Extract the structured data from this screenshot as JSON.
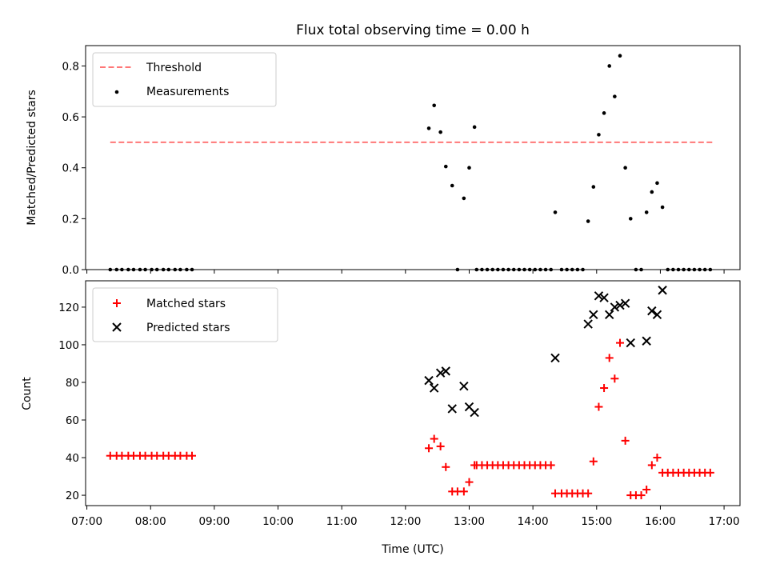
{
  "chart_data": {
    "title": "Flux total observing time = 0.00 h",
    "xlabel": "Time (UTC)",
    "x_ticks": [
      "07:00",
      "08:00",
      "09:00",
      "10:00",
      "11:00",
      "12:00",
      "13:00",
      "14:00",
      "15:00",
      "16:00",
      "17:00"
    ],
    "xlim_hours": [
      6.98,
      17.25
    ],
    "panels": [
      {
        "type": "scatter",
        "ylabel": "Matched/Predicted stars",
        "ylim": [
          0,
          0.88
        ],
        "y_ticks": [
          0.0,
          0.2,
          0.4,
          0.6,
          0.8
        ],
        "y_tick_labels": [
          "0.0",
          "0.2",
          "0.4",
          "0.6",
          "0.8"
        ],
        "legend_placement": "upper-left",
        "threshold": {
          "name": "Threshold",
          "y": 0.5,
          "x_start": "07:22",
          "x_end": "16:49",
          "color": "#ff7777",
          "style": "dashed"
        },
        "measurements": {
          "name": "Measurements",
          "color": "#000000",
          "points": [
            [
              "07:22",
              0
            ],
            [
              "07:28",
              0
            ],
            [
              "07:33",
              0
            ],
            [
              "07:39",
              0
            ],
            [
              "07:44",
              0
            ],
            [
              "07:50",
              0
            ],
            [
              "07:55",
              0
            ],
            [
              "08:01",
              0
            ],
            [
              "08:06",
              0
            ],
            [
              "08:12",
              0
            ],
            [
              "08:17",
              0
            ],
            [
              "08:23",
              0
            ],
            [
              "08:28",
              0
            ],
            [
              "08:34",
              0
            ],
            [
              "08:39",
              0
            ],
            [
              "12:22",
              0.555
            ],
            [
              "12:27",
              0.645
            ],
            [
              "12:33",
              0.54
            ],
            [
              "12:38",
              0.405
            ],
            [
              "12:44",
              0.33
            ],
            [
              "12:49",
              0
            ],
            [
              "12:55",
              0.28
            ],
            [
              "13:00",
              0.4
            ],
            [
              "13:05",
              0.56
            ],
            [
              "13:07",
              0
            ],
            [
              "13:12",
              0
            ],
            [
              "13:17",
              0
            ],
            [
              "13:22",
              0
            ],
            [
              "13:27",
              0
            ],
            [
              "13:32",
              0
            ],
            [
              "13:37",
              0
            ],
            [
              "13:42",
              0
            ],
            [
              "13:47",
              0
            ],
            [
              "13:52",
              0
            ],
            [
              "13:57",
              0
            ],
            [
              "14:02",
              0
            ],
            [
              "14:07",
              0
            ],
            [
              "14:12",
              0
            ],
            [
              "14:17",
              0
            ],
            [
              "14:21",
              0.225
            ],
            [
              "14:27",
              0
            ],
            [
              "14:32",
              0
            ],
            [
              "14:37",
              0
            ],
            [
              "14:42",
              0
            ],
            [
              "14:47",
              0
            ],
            [
              "14:52",
              0.19
            ],
            [
              "14:57",
              0.325
            ],
            [
              "15:02",
              0.53
            ],
            [
              "15:07",
              0.615
            ],
            [
              "15:12",
              0.8
            ],
            [
              "15:17",
              0.68
            ],
            [
              "15:22",
              0.84
            ],
            [
              "15:27",
              0.4
            ],
            [
              "15:32",
              0.2
            ],
            [
              "15:37",
              0
            ],
            [
              "15:42",
              0
            ],
            [
              "15:47",
              0.225
            ],
            [
              "15:52",
              0.305
            ],
            [
              "15:57",
              0.34
            ],
            [
              "16:02",
              0.245
            ],
            [
              "16:07",
              0
            ],
            [
              "16:12",
              0
            ],
            [
              "16:17",
              0
            ],
            [
              "16:22",
              0
            ],
            [
              "16:27",
              0
            ],
            [
              "16:32",
              0
            ],
            [
              "16:37",
              0
            ],
            [
              "16:42",
              0
            ],
            [
              "16:47",
              0
            ]
          ]
        }
      },
      {
        "type": "scatter",
        "ylabel": "Count",
        "ylim": [
          14.5,
          134
        ],
        "y_ticks": [
          20,
          40,
          60,
          80,
          100,
          120
        ],
        "y_tick_labels": [
          "20",
          "40",
          "60",
          "80",
          "100",
          "120"
        ],
        "legend_placement": "upper-left",
        "series": [
          {
            "name": "Matched stars",
            "marker": "+",
            "color": "#ff0000",
            "points": [
              [
                "07:22",
                41
              ],
              [
                "07:28",
                41
              ],
              [
                "07:33",
                41
              ],
              [
                "07:39",
                41
              ],
              [
                "07:44",
                41
              ],
              [
                "07:50",
                41
              ],
              [
                "07:55",
                41
              ],
              [
                "08:01",
                41
              ],
              [
                "08:06",
                41
              ],
              [
                "08:12",
                41
              ],
              [
                "08:17",
                41
              ],
              [
                "08:23",
                41
              ],
              [
                "08:28",
                41
              ],
              [
                "08:34",
                41
              ],
              [
                "08:39",
                41
              ],
              [
                "12:22",
                45
              ],
              [
                "12:27",
                50
              ],
              [
                "12:33",
                46
              ],
              [
                "12:38",
                35
              ],
              [
                "12:44",
                22
              ],
              [
                "12:49",
                22
              ],
              [
                "12:55",
                22
              ],
              [
                "13:00",
                27
              ],
              [
                "13:05",
                36
              ],
              [
                "13:07",
                36
              ],
              [
                "13:12",
                36
              ],
              [
                "13:17",
                36
              ],
              [
                "13:22",
                36
              ],
              [
                "13:27",
                36
              ],
              [
                "13:32",
                36
              ],
              [
                "13:37",
                36
              ],
              [
                "13:42",
                36
              ],
              [
                "13:47",
                36
              ],
              [
                "13:52",
                36
              ],
              [
                "13:57",
                36
              ],
              [
                "14:02",
                36
              ],
              [
                "14:07",
                36
              ],
              [
                "14:12",
                36
              ],
              [
                "14:17",
                36
              ],
              [
                "14:21",
                21
              ],
              [
                "14:27",
                21
              ],
              [
                "14:32",
                21
              ],
              [
                "14:37",
                21
              ],
              [
                "14:42",
                21
              ],
              [
                "14:47",
                21
              ],
              [
                "14:52",
                21
              ],
              [
                "14:57",
                38
              ],
              [
                "15:02",
                67
              ],
              [
                "15:07",
                77
              ],
              [
                "15:12",
                93
              ],
              [
                "15:17",
                82
              ],
              [
                "15:22",
                101
              ],
              [
                "15:27",
                49
              ],
              [
                "15:32",
                20
              ],
              [
                "15:37",
                20
              ],
              [
                "15:42",
                20
              ],
              [
                "15:47",
                23
              ],
              [
                "15:52",
                36
              ],
              [
                "15:57",
                40
              ],
              [
                "16:02",
                32
              ],
              [
                "16:07",
                32
              ],
              [
                "16:12",
                32
              ],
              [
                "16:17",
                32
              ],
              [
                "16:22",
                32
              ],
              [
                "16:27",
                32
              ],
              [
                "16:32",
                32
              ],
              [
                "16:37",
                32
              ],
              [
                "16:42",
                32
              ],
              [
                "16:47",
                32
              ]
            ]
          },
          {
            "name": "Predicted stars",
            "marker": "x",
            "color": "#000000",
            "points": [
              [
                "12:22",
                81
              ],
              [
                "12:27",
                77
              ],
              [
                "12:33",
                85
              ],
              [
                "12:38",
                86
              ],
              [
                "12:44",
                66
              ],
              [
                "12:55",
                78
              ],
              [
                "13:00",
                67
              ],
              [
                "13:05",
                64
              ],
              [
                "14:21",
                93
              ],
              [
                "14:52",
                111
              ],
              [
                "14:57",
                116
              ],
              [
                "15:02",
                126
              ],
              [
                "15:07",
                125
              ],
              [
                "15:12",
                116
              ],
              [
                "15:17",
                120
              ],
              [
                "15:22",
                121
              ],
              [
                "15:27",
                122
              ],
              [
                "15:32",
                101
              ],
              [
                "15:47",
                102
              ],
              [
                "15:52",
                118
              ],
              [
                "15:57",
                116
              ],
              [
                "16:02",
                129
              ]
            ]
          }
        ]
      }
    ]
  }
}
